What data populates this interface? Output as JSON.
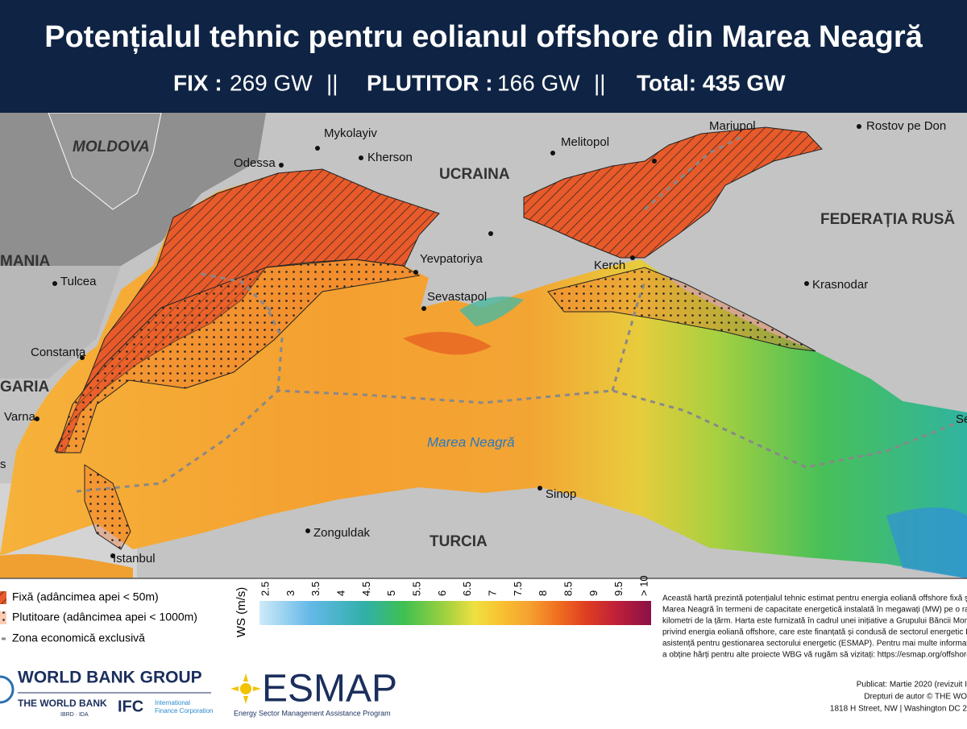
{
  "header": {
    "title": "Potențialul tehnic pentru eolianul offshore din Marea Neagră",
    "subtitle": {
      "fix_label": "FIX :",
      "fix_value": "269 GW",
      "sep1": "||",
      "float_label": "PLUTITOR :",
      "float_value": "166 GW",
      "sep2": "||",
      "total": "Total: 435 GW"
    }
  },
  "map": {
    "labels": [
      "MOLDOVA",
      "Mykolayiv",
      "Kherson",
      "Odessa",
      "Melitopol",
      "Mariupol",
      "Rostov pe Don",
      "UCRAINA",
      "FEDERAȚIA RUSĂ",
      "MANIA",
      "Tulcea",
      "Yevpatoriya",
      "Kerch",
      "Krasnodar",
      "Sevastapol",
      "Constanța",
      "GARIA",
      "Varna",
      "Marea Neagră",
      "Sinop",
      "Zonguldak",
      "TURCIA",
      "Istanbul",
      "Se",
      "s"
    ]
  },
  "legend": {
    "items": [
      "Fixă (adâncimea apei < 50m)",
      "Plutitoare (adâncimea apei < 1000m)",
      "Zona economică exclusivă"
    ],
    "scale_title": "WS (m/s)",
    "scale_ticks": [
      "2.5",
      "3",
      "3.5",
      "4",
      "4.5",
      "5",
      "5.5",
      "6",
      "6.5",
      "7",
      "7.5",
      "8",
      "8.5",
      "9",
      "9.5",
      "> 10"
    ]
  },
  "description": [
    "Această hartă prezintă potențialul tehnic estimat pentru energia eoliană offshore fixă și plu",
    "Marea Neagră în termeni de capacitate energetică instalată în megawați (MW) pe o rază c",
    "kilometri de la țărm. Harta este furnizată în cadrul unei inițiative a Grupului Băncii Mondial",
    "privind energia eoliană offshore, care este finanțată și condusă de sectorul energetic Prog",
    "asistență pentru gestionarea sectorului energetic (ESMAP). Pentru mai multe informații și",
    "a obține hărți pentru alte proiecte WBG vă rugăm să vizitați: https://esmap.org/offshore-"
  ],
  "publication": [
    "Publicat: Martie 2020 (revizuit I",
    "Drepturi de autor © THE WO",
    "1818 H Street, NW | Washington DC 2"
  ],
  "logos": {
    "wbg": "WORLD BANK GROUP",
    "wb": "THE WORLD BANK",
    "ibrd": "IBRD · IDA",
    "ifc": "IFC",
    "ifc_1": "International",
    "ifc_2": "Finance Corporation",
    "esmap": "ESMAP",
    "esmap_sub": "Energy Sector Management Assistance Program"
  }
}
